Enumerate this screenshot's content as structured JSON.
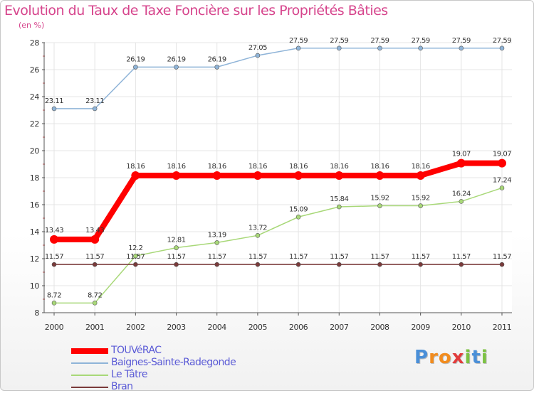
{
  "chart_data": {
    "type": "line",
    "title": "Evolution du Taux de Taxe Foncière sur les Propriétés Bâties",
    "subtitle": "(en %)",
    "xlabel": "",
    "ylabel": "",
    "categories": [
      "2000",
      "2001",
      "2002",
      "2003",
      "2004",
      "2005",
      "2006",
      "2007",
      "2008",
      "2009",
      "2010",
      "2011"
    ],
    "ylim": [
      8,
      28
    ],
    "yticks": [
      "8",
      "10",
      "12",
      "14",
      "16",
      "18",
      "20",
      "22",
      "24",
      "26",
      "28"
    ],
    "grid": true,
    "series": [
      {
        "name": "TOUVéRAC",
        "color": "#ff0000",
        "values": [
          13.43,
          13.43,
          18.16,
          18.16,
          18.16,
          18.16,
          18.16,
          18.16,
          18.16,
          18.16,
          19.07,
          19.07
        ],
        "labels": [
          "13.43",
          "13.43",
          "18.16",
          "18.16",
          "18.16",
          "18.16",
          "18.16",
          "18.16",
          "18.16",
          "18.16",
          "19.07",
          "19.07"
        ],
        "highlight": true
      },
      {
        "name": "Baignes-Sainte-Radegonde",
        "color": "#8fb4d8",
        "values": [
          23.11,
          23.11,
          26.19,
          26.19,
          26.19,
          27.05,
          27.59,
          27.59,
          27.59,
          27.59,
          27.59,
          27.59
        ],
        "labels": [
          "23.11",
          "23.11",
          "26.19",
          "26.19",
          "26.19",
          "27.05",
          "27.59",
          "27.59",
          "27.59",
          "27.59",
          "27.59",
          "27.59"
        ],
        "highlight": false
      },
      {
        "name": "Le Tâtre",
        "color": "#a8d878",
        "values": [
          8.72,
          8.72,
          12.2,
          12.81,
          13.19,
          13.72,
          15.09,
          15.84,
          15.92,
          15.92,
          16.24,
          17.24
        ],
        "labels": [
          "8.72",
          "8.72",
          "12.2",
          "12.81",
          "13.19",
          "13.72",
          "15.09",
          "15.84",
          "15.92",
          "15.92",
          "16.24",
          "17.24"
        ],
        "highlight": false
      },
      {
        "name": "Bran",
        "color": "#7a3a3a",
        "values": [
          11.57,
          11.57,
          11.57,
          11.57,
          11.57,
          11.57,
          11.57,
          11.57,
          11.57,
          11.57,
          11.57,
          11.57
        ],
        "labels": [
          "11.57",
          "11.57",
          "11.57",
          "11.57",
          "11.57",
          "11.57",
          "11.57",
          "11.57",
          "11.57",
          "11.57",
          "11.57",
          "11.57"
        ],
        "highlight": false
      }
    ],
    "legend_position": "bottom-left"
  },
  "logo": {
    "letters": [
      "P",
      "r",
      "o",
      "x",
      "i",
      "t",
      "i"
    ],
    "colors": [
      "#4a8fd8",
      "#f28c1e",
      "#f28c1e",
      "#e23c3c",
      "#7cc242",
      "#4a8fd8",
      "#7cc242"
    ]
  }
}
